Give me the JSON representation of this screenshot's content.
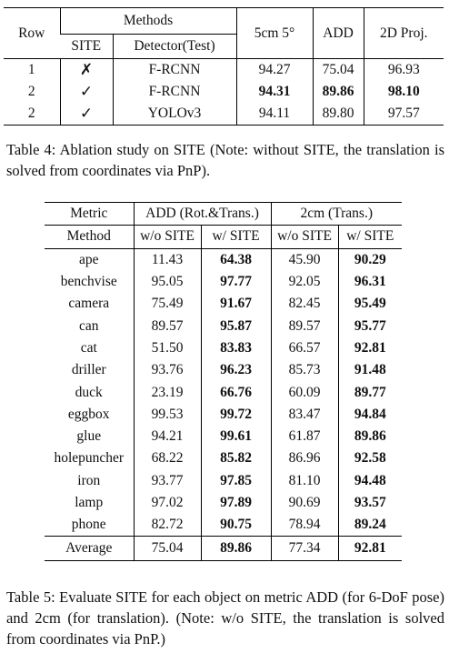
{
  "table4": {
    "col_row": "Row",
    "col_methods": "Methods",
    "col_site": "SITE",
    "col_detector": "Detector(Test)",
    "col_5cm": "5cm 5°",
    "col_add": "ADD",
    "col_2d": "2D Proj.",
    "rows": [
      {
        "row": "1",
        "site": "✗",
        "detector": "F-RCNN",
        "cm5": "94.27",
        "add": "75.04",
        "proj": "96.93"
      },
      {
        "row": "2",
        "site": "✓",
        "detector": "F-RCNN",
        "cm5": "94.31",
        "add": "89.86",
        "proj": "98.10"
      },
      {
        "row": "2",
        "site": "✓",
        "detector": "YOLOv3",
        "cm5": "94.11",
        "add": "89.80",
        "proj": "97.57"
      }
    ]
  },
  "caption4": "Table 4:  Ablation study on SITE (Note: without SITE, the translation is solved from coordinates via PnP).",
  "table5": {
    "col_metric": "Metric",
    "col_add_group": "ADD (Rot.&Trans.)",
    "col_2cm_group": "2cm (Trans.)",
    "col_method": "Method",
    "col_wo": "w/o SITE",
    "col_w": "w/ SITE",
    "rows": [
      {
        "name": "ape",
        "add_wo": "11.43",
        "add_w": "64.38",
        "cm_wo": "45.90",
        "cm_w": "90.29"
      },
      {
        "name": "benchvise",
        "add_wo": "95.05",
        "add_w": "97.77",
        "cm_wo": "92.05",
        "cm_w": "96.31"
      },
      {
        "name": "camera",
        "add_wo": "75.49",
        "add_w": "91.67",
        "cm_wo": "82.45",
        "cm_w": "95.49"
      },
      {
        "name": "can",
        "add_wo": "89.57",
        "add_w": "95.87",
        "cm_wo": "89.57",
        "cm_w": "95.77"
      },
      {
        "name": "cat",
        "add_wo": "51.50",
        "add_w": "83.83",
        "cm_wo": "66.57",
        "cm_w": "92.81"
      },
      {
        "name": "driller",
        "add_wo": "93.76",
        "add_w": "96.23",
        "cm_wo": "85.73",
        "cm_w": "91.48"
      },
      {
        "name": "duck",
        "add_wo": "23.19",
        "add_w": "66.76",
        "cm_wo": "60.09",
        "cm_w": "89.77"
      },
      {
        "name": "eggbox",
        "add_wo": "99.53",
        "add_w": "99.72",
        "cm_wo": "83.47",
        "cm_w": "94.84"
      },
      {
        "name": "glue",
        "add_wo": "94.21",
        "add_w": "99.61",
        "cm_wo": "61.87",
        "cm_w": "89.86"
      },
      {
        "name": "holepuncher",
        "add_wo": "68.22",
        "add_w": "85.82",
        "cm_wo": "86.96",
        "cm_w": "92.58"
      },
      {
        "name": "iron",
        "add_wo": "93.77",
        "add_w": "97.85",
        "cm_wo": "81.10",
        "cm_w": "94.48"
      },
      {
        "name": "lamp",
        "add_wo": "97.02",
        "add_w": "97.89",
        "cm_wo": "90.69",
        "cm_w": "93.57"
      },
      {
        "name": "phone",
        "add_wo": "82.72",
        "add_w": "90.75",
        "cm_wo": "78.94",
        "cm_w": "89.24"
      }
    ],
    "average": {
      "name": "Average",
      "add_wo": "75.04",
      "add_w": "89.86",
      "cm_wo": "77.34",
      "cm_w": "92.81"
    }
  },
  "caption5": "Table 5:  Evaluate SITE for each object on metric ADD (for 6-DoF pose) and 2cm (for translation). (Note: w/o SITE, the translation is solved from coordinates via PnP.)"
}
